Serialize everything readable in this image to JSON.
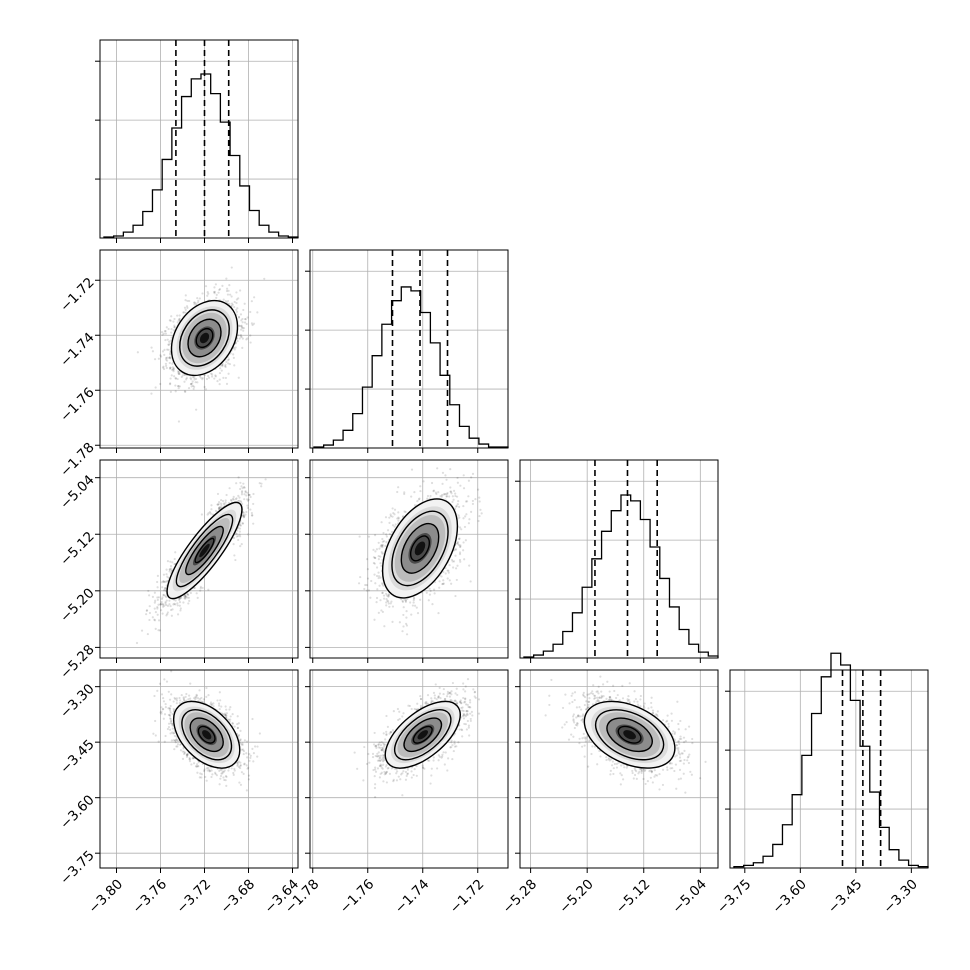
{
  "chart_data": {
    "type": "corner",
    "parameters": [
      {
        "ticks": [
          -3.8,
          -3.76,
          -3.72,
          -3.68,
          -3.64
        ],
        "tick_labels": [
          "−3.80",
          "−3.76",
          "−3.72",
          "−3.68",
          "−3.64"
        ],
        "range": [
          -3.815,
          -3.635
        ]
      },
      {
        "ticks": [
          -1.78,
          -1.76,
          -1.74,
          -1.72
        ],
        "tick_labels": [
          "−1.78",
          "−1.76",
          "−1.74",
          "−1.72"
        ],
        "range": [
          -1.781,
          -1.709
        ]
      },
      {
        "ticks": [
          -5.28,
          -5.2,
          -5.12,
          -5.04
        ],
        "tick_labels": [
          "−5.28",
          "−5.20",
          "−5.12",
          "−5.04"
        ],
        "range": [
          -5.295,
          -5.015
        ]
      },
      {
        "ticks": [
          -3.75,
          -3.6,
          -3.45,
          -3.3
        ],
        "tick_labels": [
          "−3.75",
          "−3.60",
          "−3.45",
          "−3.30"
        ],
        "range": [
          -3.79,
          -3.255
        ]
      }
    ],
    "marginals": [
      {
        "parameter": 0,
        "quantiles": [
          -3.746,
          -3.72,
          -3.698
        ],
        "counts": [
          1,
          2,
          6,
          13,
          27,
          49,
          80,
          112,
          144,
          162,
          167,
          147,
          118,
          84,
          53,
          28,
          13,
          6,
          2,
          1
        ],
        "y_ticks": [
          60,
          120,
          180
        ]
      },
      {
        "parameter": 1,
        "quantiles": [
          -1.751,
          -1.741,
          -1.731
        ],
        "counts": [
          1,
          3,
          8,
          18,
          35,
          62,
          94,
          126,
          150,
          164,
          160,
          138,
          107,
          74,
          44,
          22,
          10,
          4,
          1,
          1
        ],
        "y_ticks": [
          60,
          120,
          180
        ]
      },
      {
        "parameter": 2,
        "quantiles": [
          -5.189,
          -5.143,
          -5.101
        ],
        "counts": [
          1,
          3,
          7,
          14,
          27,
          46,
          72,
          101,
          129,
          150,
          166,
          160,
          141,
          113,
          81,
          52,
          29,
          14,
          6,
          2
        ],
        "y_ticks": [
          60,
          120,
          180
        ]
      },
      {
        "parameter": 3,
        "quantiles": [
          -3.486,
          -3.431,
          -3.383
        ],
        "counts": [
          1,
          2,
          4,
          9,
          18,
          33,
          56,
          86,
          118,
          146,
          164,
          155,
          128,
          93,
          58,
          31,
          14,
          6,
          2,
          1
        ],
        "y_ticks": [
          45,
          90,
          135
        ]
      }
    ],
    "pairs": [
      {
        "x": 0,
        "y": 1,
        "center": [
          -3.72,
          -1.741
        ],
        "sigma": [
          0.015,
          0.0068
        ],
        "rho": 0.3
      },
      {
        "x": 0,
        "y": 2,
        "center": [
          -3.72,
          -5.143
        ],
        "sigma": [
          0.017,
          0.034
        ],
        "rho": 0.85
      },
      {
        "x": 1,
        "y": 2,
        "center": [
          -1.741,
          -5.14
        ],
        "sigma": [
          0.0068,
          0.035
        ],
        "rho": 0.45
      },
      {
        "x": 0,
        "y": 3,
        "center": [
          -3.718,
          -3.43
        ],
        "sigma": [
          0.015,
          0.045
        ],
        "rho": -0.45
      },
      {
        "x": 1,
        "y": 3,
        "center": [
          -1.74,
          -3.43
        ],
        "sigma": [
          0.0068,
          0.045
        ],
        "rho": 0.6
      },
      {
        "x": 2,
        "y": 3,
        "center": [
          -5.14,
          -3.43
        ],
        "sigma": [
          0.032,
          0.045
        ],
        "rho": -0.4
      }
    ],
    "contour_levels": [
      0.5,
      1.0,
      1.5,
      2.0
    ],
    "grid": true,
    "colors": {
      "hist": "#000000",
      "points": "#000000",
      "density": "#000000"
    }
  }
}
